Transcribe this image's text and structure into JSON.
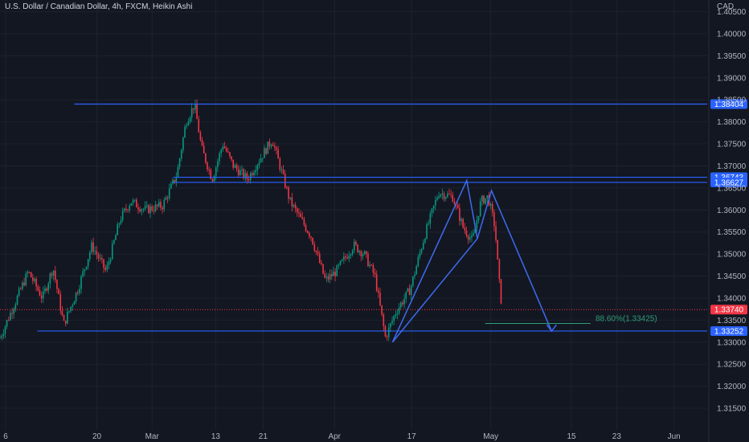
{
  "header": {
    "title": "U.S. Dollar / Canadian Dollar, 4h, FXCM, Heikin Ashi",
    "currency": "CAD"
  },
  "colors": {
    "background": "#131722",
    "grid": "#1e222d",
    "axis_text": "#b2b5be",
    "up_candle": "#089981",
    "down_candle": "#f23645",
    "level_line": "#2962ff",
    "pattern_line": "#3d6cf0",
    "fib_text": "#2e9e77",
    "price_line": "#f23645"
  },
  "chart_data": {
    "type": "candlestick",
    "title": "U.S. Dollar / Canadian Dollar, 4h, FXCM, Heikin Ashi",
    "currency": "CAD",
    "ylim": [
      1.31,
      1.41
    ],
    "y_ticks": [
      "1.40500",
      "1.40000",
      "1.39500",
      "1.39000",
      "1.38500",
      "1.38000",
      "1.37500",
      "1.37000",
      "1.36500",
      "1.36000",
      "1.35500",
      "1.35000",
      "1.34500",
      "1.34000",
      "1.33500",
      "1.33000",
      "1.32500",
      "1.32000",
      "1.31500"
    ],
    "x_ticks": [
      "6",
      "20",
      "Mar",
      "13",
      "21",
      "Apr",
      "17",
      "May",
      "15",
      "23",
      "Jun"
    ],
    "grid": true,
    "price_waypoints": [
      {
        "x": 0,
        "price": 1.331
      },
      {
        "x": 0.04,
        "price": 1.346
      },
      {
        "x": 0.06,
        "price": 1.34
      },
      {
        "x": 0.075,
        "price": 1.347
      },
      {
        "x": 0.09,
        "price": 1.334
      },
      {
        "x": 0.11,
        "price": 1.342
      },
      {
        "x": 0.13,
        "price": 1.352
      },
      {
        "x": 0.15,
        "price": 1.346
      },
      {
        "x": 0.17,
        "price": 1.358
      },
      {
        "x": 0.185,
        "price": 1.362
      },
      {
        "x": 0.205,
        "price": 1.36
      },
      {
        "x": 0.23,
        "price": 1.361
      },
      {
        "x": 0.25,
        "price": 1.368
      },
      {
        "x": 0.263,
        "price": 1.38
      },
      {
        "x": 0.275,
        "price": 1.384
      },
      {
        "x": 0.285,
        "price": 1.374
      },
      {
        "x": 0.3,
        "price": 1.367
      },
      {
        "x": 0.315,
        "price": 1.375
      },
      {
        "x": 0.33,
        "price": 1.37
      },
      {
        "x": 0.35,
        "price": 1.367
      },
      {
        "x": 0.365,
        "price": 1.371
      },
      {
        "x": 0.385,
        "price": 1.376
      },
      {
        "x": 0.41,
        "price": 1.362
      },
      {
        "x": 0.44,
        "price": 1.354
      },
      {
        "x": 0.46,
        "price": 1.344
      },
      {
        "x": 0.475,
        "price": 1.346
      },
      {
        "x": 0.5,
        "price": 1.352
      },
      {
        "x": 0.515,
        "price": 1.35
      },
      {
        "x": 0.53,
        "price": 1.345
      },
      {
        "x": 0.545,
        "price": 1.331
      },
      {
        "x": 0.56,
        "price": 1.337
      },
      {
        "x": 0.58,
        "price": 1.342
      },
      {
        "x": 0.6,
        "price": 1.354
      },
      {
        "x": 0.62,
        "price": 1.364
      },
      {
        "x": 0.64,
        "price": 1.363
      },
      {
        "x": 0.655,
        "price": 1.356
      },
      {
        "x": 0.668,
        "price": 1.353
      },
      {
        "x": 0.68,
        "price": 1.362
      },
      {
        "x": 0.69,
        "price": 1.363
      },
      {
        "x": 0.7,
        "price": 1.356
      },
      {
        "x": 0.705,
        "price": 1.345
      },
      {
        "x": 0.71,
        "price": 1.3374
      }
    ],
    "horizontal_levels": [
      {
        "price": 1.38404,
        "label": "1.38404"
      },
      {
        "price": 1.36743,
        "label": "1.36743"
      },
      {
        "price": 1.36627,
        "label": "1.36627"
      },
      {
        "price": 1.33252,
        "label": "1.33252"
      }
    ],
    "current_price": {
      "price": 1.3374,
      "label": "1.33740"
    },
    "pattern": {
      "points": [
        {
          "x": 0.555,
          "price": 1.33
        },
        {
          "x": 0.66,
          "price": 1.3667
        },
        {
          "x": 0.675,
          "price": 1.3535
        },
        {
          "x": 0.695,
          "price": 1.3644
        },
        {
          "x": 0.78,
          "price": 1.3325
        }
      ],
      "fib_label": "88.60%(1.33425)",
      "fib_price": 1.33425
    }
  }
}
